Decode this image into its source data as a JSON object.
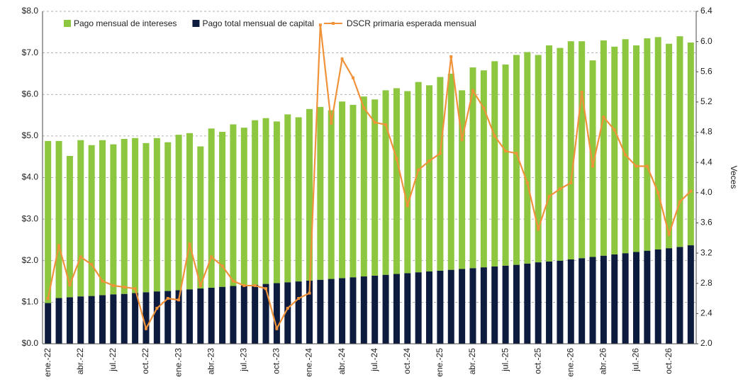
{
  "chart_data": {
    "type": "bar-line",
    "y2_label": "Veces",
    "categories": [
      "ene.-22",
      null,
      null,
      "abr.-22",
      null,
      null,
      "jul.-22",
      null,
      null,
      "oct.-22",
      null,
      null,
      "ene.-23",
      null,
      null,
      "abr.-23",
      null,
      null,
      "jul.-23",
      null,
      null,
      "oct.-23",
      null,
      null,
      "ene.-24",
      null,
      null,
      "abr.-24",
      null,
      null,
      "jul.-24",
      null,
      null,
      "oct.-24",
      null,
      null,
      "ene.-25",
      null,
      null,
      "abr.-25",
      null,
      null,
      "jul.-25",
      null,
      null,
      "oct.-25",
      null,
      null,
      "ene.-26",
      null,
      null,
      "abr.-26",
      null,
      null,
      "jul.-26",
      null,
      null,
      "oct.-26",
      null,
      null
    ],
    "stacked": true,
    "series": [
      {
        "name": "Pago total mensual de capital",
        "color": "#0d1b3e",
        "type": "bar",
        "values": [
          0.98,
          1.1,
          1.12,
          1.14,
          1.15,
          1.17,
          1.19,
          1.2,
          1.22,
          1.24,
          1.26,
          1.27,
          1.29,
          1.31,
          1.33,
          1.35,
          1.37,
          1.39,
          1.4,
          1.42,
          1.44,
          1.46,
          1.48,
          1.5,
          1.52,
          1.54,
          1.56,
          1.58,
          1.6,
          1.62,
          1.64,
          1.66,
          1.68,
          1.7,
          1.72,
          1.74,
          1.76,
          1.78,
          1.8,
          1.82,
          1.84,
          1.86,
          1.88,
          1.9,
          1.93,
          1.96,
          1.98,
          2.0,
          2.03,
          2.06,
          2.09,
          2.12,
          2.15,
          2.18,
          2.21,
          2.24,
          2.27,
          2.3,
          2.33,
          2.37
        ]
      },
      {
        "name": "Pago mensual de intereses",
        "color": "#8dc63f",
        "type": "bar",
        "values": [
          3.9,
          3.78,
          3.4,
          3.76,
          3.63,
          3.73,
          3.61,
          3.73,
          3.73,
          3.59,
          3.69,
          3.58,
          3.74,
          3.76,
          3.42,
          3.83,
          3.73,
          3.89,
          3.8,
          3.96,
          3.99,
          3.89,
          4.04,
          3.95,
          4.13,
          4.16,
          4.06,
          4.25,
          4.15,
          4.33,
          4.24,
          4.44,
          4.47,
          4.38,
          4.58,
          4.48,
          4.66,
          4.72,
          4.3,
          4.83,
          4.74,
          4.94,
          4.84,
          5.05,
          5.09,
          4.99,
          5.2,
          5.12,
          5.25,
          5.22,
          4.73,
          5.18,
          5.0,
          5.15,
          4.97,
          5.11,
          5.11,
          4.92,
          5.07,
          4.88
        ]
      },
      {
        "name": "DSCR primaria esperada mensual",
        "color": "#f0923a",
        "type": "line",
        "axis": "y2",
        "values": [
          2.6,
          3.3,
          2.78,
          3.15,
          3.05,
          2.83,
          2.77,
          2.75,
          2.73,
          2.2,
          2.47,
          2.6,
          2.58,
          3.32,
          2.77,
          3.15,
          3.03,
          2.83,
          2.77,
          2.77,
          2.73,
          2.2,
          2.47,
          2.6,
          2.67,
          6.22,
          4.92,
          5.77,
          5.52,
          5.12,
          4.93,
          4.9,
          4.45,
          3.83,
          4.3,
          4.42,
          4.52,
          5.8,
          4.7,
          5.35,
          5.12,
          4.75,
          4.55,
          4.52,
          4.13,
          3.52,
          3.95,
          4.05,
          4.13,
          5.33,
          4.35,
          5.0,
          4.83,
          4.5,
          4.35,
          4.35,
          4.0,
          3.45,
          3.88,
          4.02
        ]
      }
    ],
    "legend_order": [
      1,
      0,
      2
    ],
    "ylim": [
      0,
      8
    ],
    "yticks": [
      {
        "value": 0,
        "label": "$0.0"
      },
      {
        "value": 1,
        "label": "$1.0"
      },
      {
        "value": 2,
        "label": "$2.0"
      },
      {
        "value": 3,
        "label": "$3.0"
      },
      {
        "value": 4,
        "label": "$4.0"
      },
      {
        "value": 5,
        "label": "$5.0"
      },
      {
        "value": 6,
        "label": "$6.0"
      },
      {
        "value": 7,
        "label": "$7.0"
      },
      {
        "value": 8,
        "label": "$8.0"
      }
    ],
    "y2lim": [
      2,
      6.4
    ],
    "y2ticks": [
      {
        "value": 2,
        "label": "2.0"
      },
      2.4,
      2.8,
      3.2,
      3.6,
      {
        "value": 4,
        "label": "4.0"
      },
      4.4,
      4.8,
      5.2,
      5.6,
      {
        "value": 6,
        "label": "6.0"
      },
      6.4
    ],
    "grid": true
  }
}
